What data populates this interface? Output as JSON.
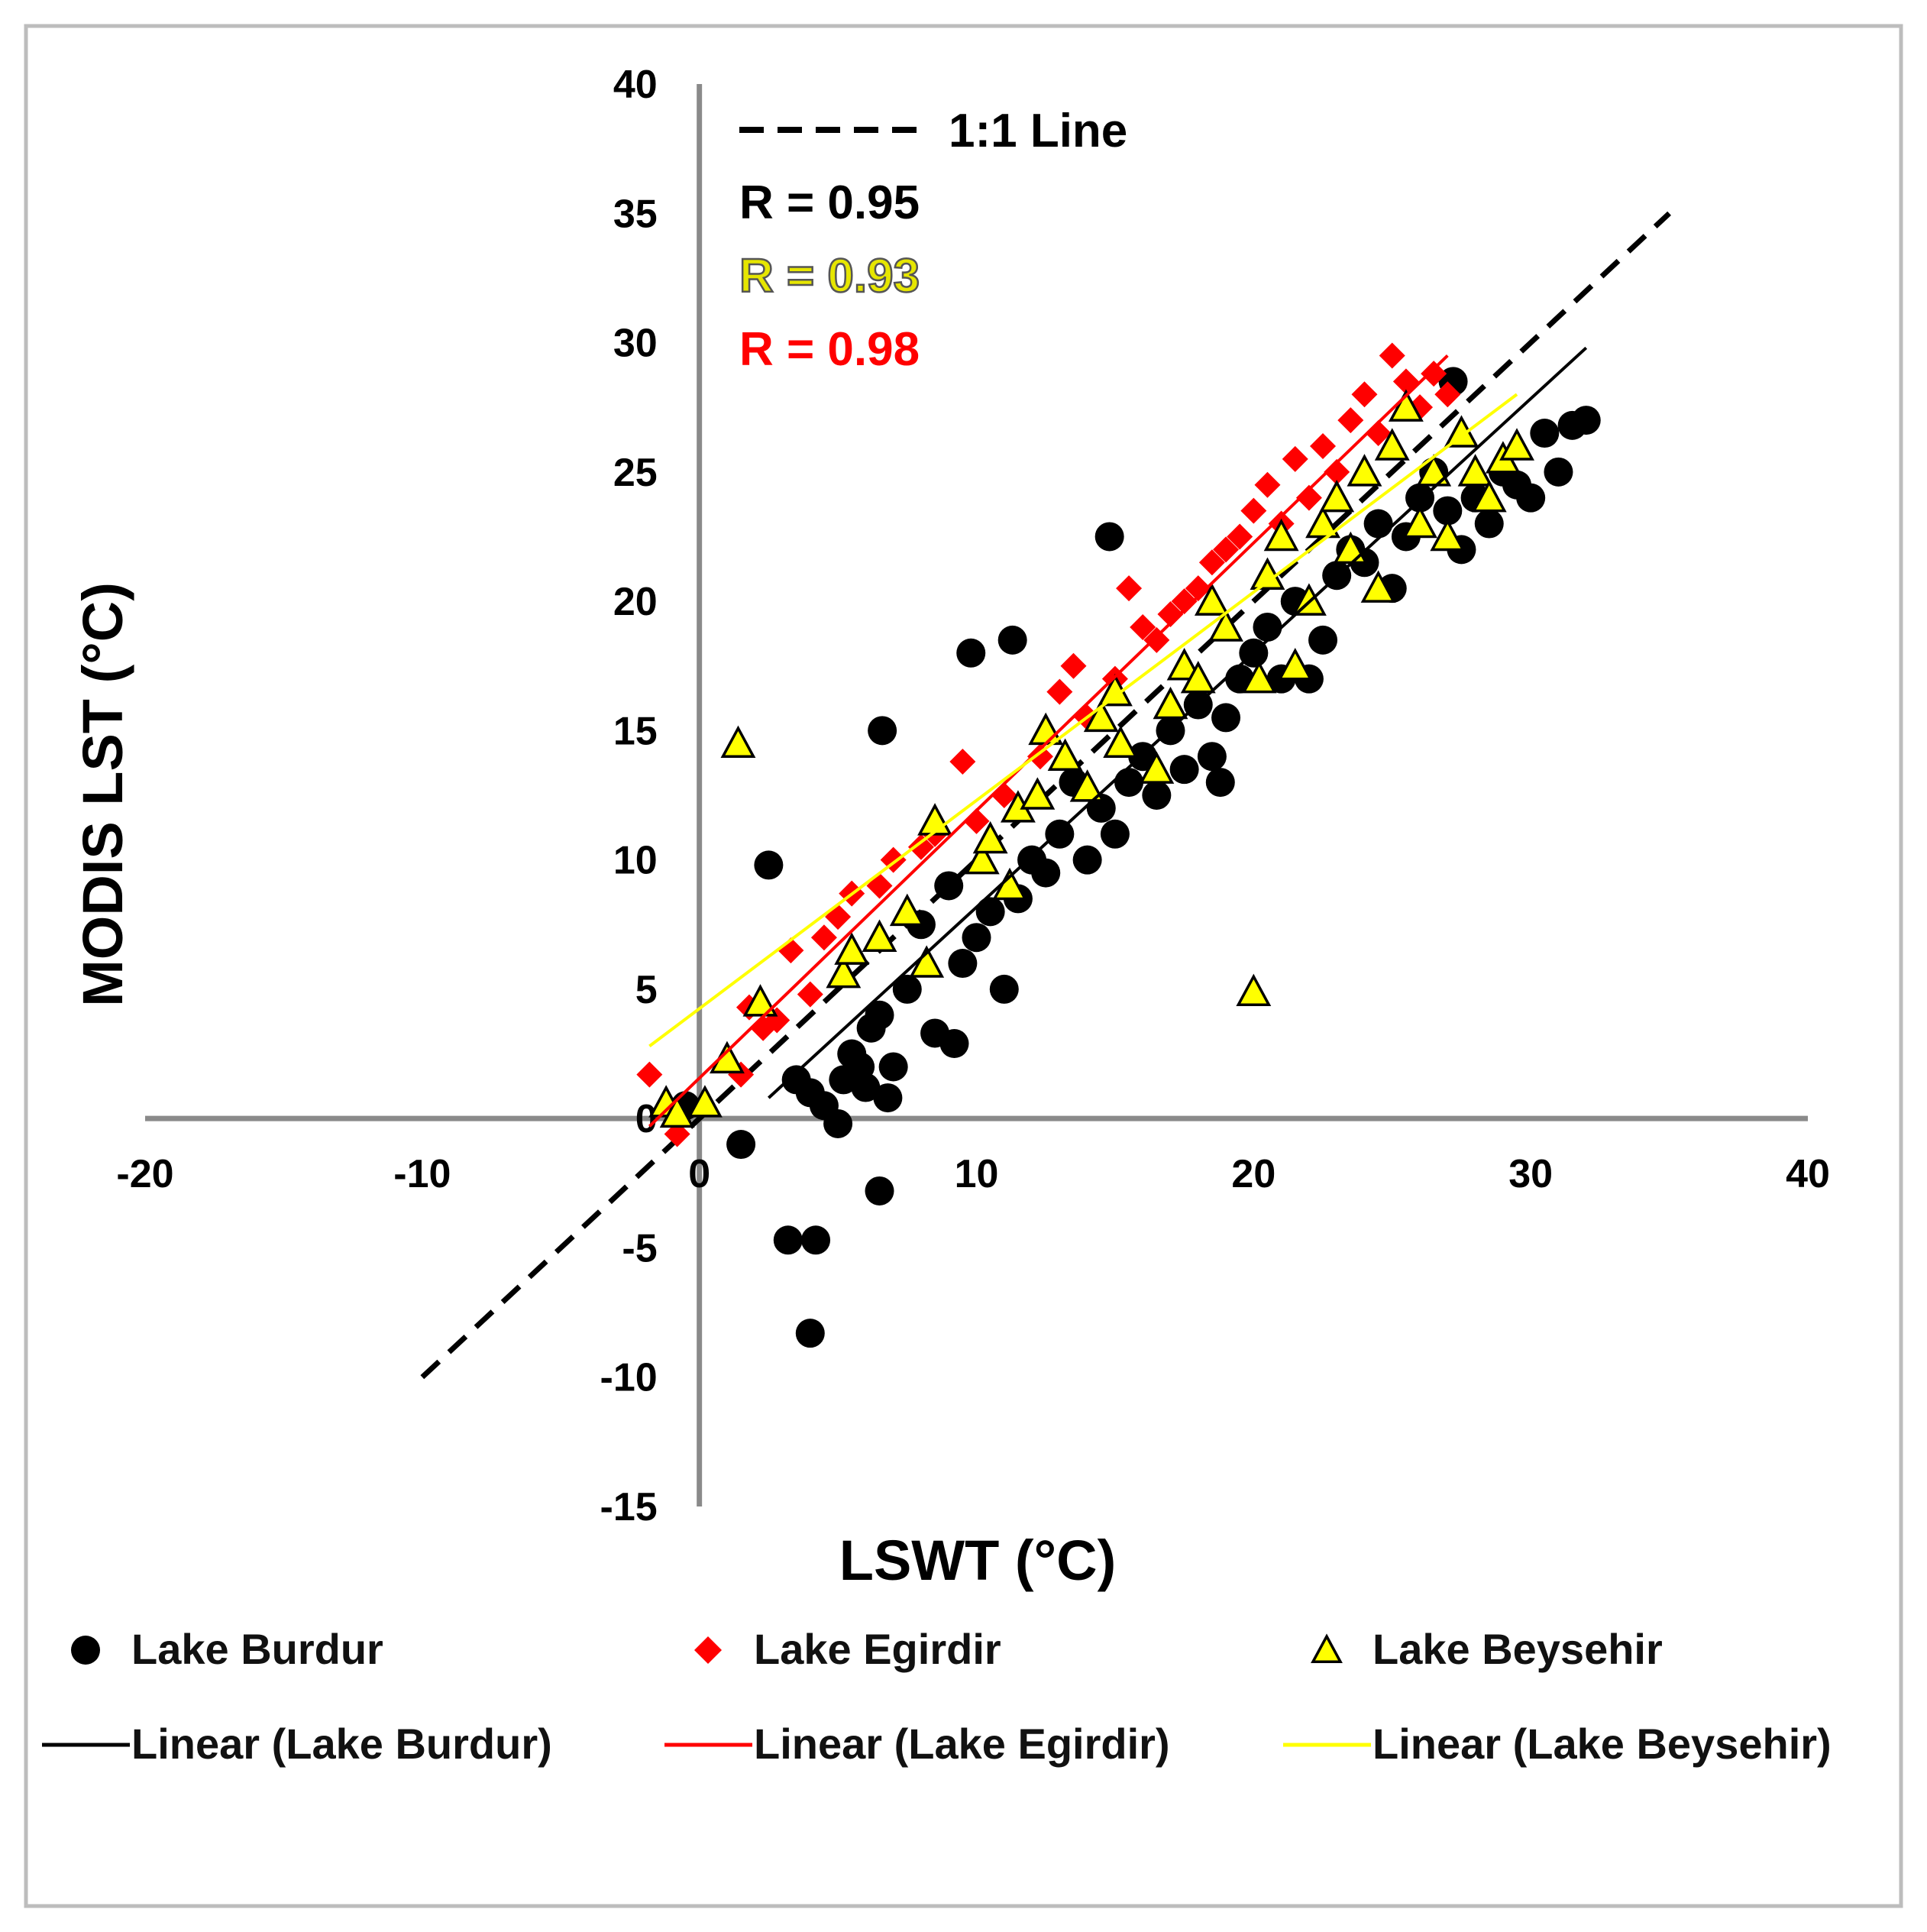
{
  "chart_data": {
    "type": "scatter",
    "xlabel": "LSWT (°C)",
    "ylabel": "MODIS LST (°C)",
    "xlim": [
      -20,
      40
    ],
    "ylim": [
      -15,
      40
    ],
    "x_ticks": [
      -20,
      -10,
      0,
      10,
      20,
      30,
      40
    ],
    "y_ticks": [
      40,
      35,
      30,
      25,
      20,
      15,
      10,
      5,
      0,
      -5,
      -10,
      -15
    ],
    "annotations": [
      {
        "text": "1:1 Line",
        "color": "#000000"
      },
      {
        "text": "R = 0.95",
        "color": "#000000"
      },
      {
        "text": "R = 0.93",
        "color": "#e6e600"
      },
      {
        "text": "R = 0.98",
        "color": "#ff0000"
      }
    ],
    "reference_line": {
      "name": "1:1 Line",
      "x": [
        -10,
        35
      ],
      "y": [
        -10,
        35
      ],
      "color": "#000000",
      "style": "dashed"
    },
    "series": [
      {
        "name": "Lake Burdur",
        "marker": "circle",
        "color": "#000000",
        "points": [
          [
            -0.5,
            0.5
          ],
          [
            1.5,
            -1
          ],
          [
            2.5,
            9.8
          ],
          [
            3.2,
            -4.7
          ],
          [
            4.2,
            -4.7
          ],
          [
            4,
            -8.3
          ],
          [
            3.5,
            1.5
          ],
          [
            4,
            1
          ],
          [
            4.5,
            0.5
          ],
          [
            5,
            -0.2
          ],
          [
            5.2,
            1.5
          ],
          [
            5.5,
            2.5
          ],
          [
            5.8,
            2
          ],
          [
            6,
            1.2
          ],
          [
            6.2,
            3.5
          ],
          [
            6.5,
            4
          ],
          [
            6.8,
            0.8
          ],
          [
            6.5,
            -2.8
          ],
          [
            7,
            2
          ],
          [
            6.6,
            15
          ],
          [
            7.5,
            5
          ],
          [
            8,
            7.5
          ],
          [
            8.5,
            3.3
          ],
          [
            9,
            9
          ],
          [
            9.2,
            2.9
          ],
          [
            9.5,
            6
          ],
          [
            10,
            7
          ],
          [
            10.5,
            8
          ],
          [
            9.8,
            18
          ],
          [
            11.3,
            18.5
          ],
          [
            11,
            5
          ],
          [
            11.5,
            8.5
          ],
          [
            12,
            10
          ],
          [
            12.5,
            9.5
          ],
          [
            13,
            11
          ],
          [
            13.5,
            13
          ],
          [
            14,
            10
          ],
          [
            14.5,
            12
          ],
          [
            14.8,
            22.5
          ],
          [
            15,
            11
          ],
          [
            15.5,
            13
          ],
          [
            16,
            14
          ],
          [
            16.5,
            12.5
          ],
          [
            17,
            15
          ],
          [
            17.5,
            13.5
          ],
          [
            18,
            16
          ],
          [
            18.5,
            14
          ],
          [
            18.8,
            13
          ],
          [
            19,
            15.5
          ],
          [
            19.5,
            17
          ],
          [
            20,
            18
          ],
          [
            20.5,
            19
          ],
          [
            21,
            17
          ],
          [
            21.5,
            20
          ],
          [
            22,
            17
          ],
          [
            22.5,
            18.5
          ],
          [
            23,
            21
          ],
          [
            23.5,
            22
          ],
          [
            24,
            21.5
          ],
          [
            24.5,
            23
          ],
          [
            25,
            20.5
          ],
          [
            25.5,
            22.5
          ],
          [
            26,
            24
          ],
          [
            26.5,
            25
          ],
          [
            27,
            23.5
          ],
          [
            27.2,
            28.5
          ],
          [
            27.5,
            22
          ],
          [
            28,
            24
          ],
          [
            28.5,
            23
          ],
          [
            29,
            25
          ],
          [
            29.5,
            24.5
          ],
          [
            30,
            24
          ],
          [
            30.5,
            26.5
          ],
          [
            31,
            25
          ],
          [
            31.5,
            26.8
          ],
          [
            32,
            27
          ]
        ]
      },
      {
        "name": "Lake Egirdir",
        "marker": "diamond",
        "color": "#ff0000",
        "points": [
          [
            -1.8,
            1.7
          ],
          [
            -0.8,
            -0.6
          ],
          [
            1.5,
            1.7
          ],
          [
            1.8,
            4.3
          ],
          [
            2.3,
            3.5
          ],
          [
            2.8,
            3.8
          ],
          [
            3.3,
            6.5
          ],
          [
            4,
            4.8
          ],
          [
            4.5,
            7
          ],
          [
            5,
            7.8
          ],
          [
            5.5,
            8.7
          ],
          [
            6.5,
            9
          ],
          [
            7,
            10
          ],
          [
            8,
            10.5
          ],
          [
            8.5,
            11
          ],
          [
            9.5,
            13.8
          ],
          [
            10,
            11.5
          ],
          [
            11,
            12.5
          ],
          [
            12.3,
            14
          ],
          [
            13,
            16.5
          ],
          [
            13.5,
            17.5
          ],
          [
            14,
            15.5
          ],
          [
            15,
            17
          ],
          [
            15.5,
            20.5
          ],
          [
            16,
            19
          ],
          [
            16.5,
            18.5
          ],
          [
            17,
            19.5
          ],
          [
            17.5,
            20
          ],
          [
            18,
            20.5
          ],
          [
            18.5,
            21.5
          ],
          [
            19,
            22
          ],
          [
            19.5,
            22.5
          ],
          [
            20,
            23.5
          ],
          [
            20.5,
            24.5
          ],
          [
            21,
            23
          ],
          [
            21.5,
            25.5
          ],
          [
            22,
            24
          ],
          [
            22.5,
            26
          ],
          [
            23,
            25
          ],
          [
            23.5,
            27
          ],
          [
            24,
            28
          ],
          [
            24.5,
            26.5
          ],
          [
            25,
            29.5
          ],
          [
            25.5,
            28.5
          ],
          [
            26,
            27.5
          ],
          [
            26.5,
            28.8
          ],
          [
            27,
            28
          ]
        ]
      },
      {
        "name": "Lake Beysehir",
        "marker": "triangle",
        "color": "#ffff00",
        "points": [
          [
            -1.2,
            0.6
          ],
          [
            -0.8,
            0.2
          ],
          [
            0.2,
            0.6
          ],
          [
            1,
            2.3
          ],
          [
            1.4,
            14.5
          ],
          [
            2.2,
            4.5
          ],
          [
            5.2,
            5.6
          ],
          [
            5.5,
            6.5
          ],
          [
            6.5,
            7
          ],
          [
            7.5,
            8
          ],
          [
            8.2,
            6
          ],
          [
            8.5,
            11.5
          ],
          [
            10.2,
            10
          ],
          [
            10.5,
            10.8
          ],
          [
            11.2,
            9
          ],
          [
            11.5,
            12
          ],
          [
            12.2,
            12.5
          ],
          [
            12.5,
            15
          ],
          [
            13.2,
            14
          ],
          [
            14,
            12.8
          ],
          [
            14.5,
            15.5
          ],
          [
            15,
            16.5
          ],
          [
            15.2,
            14.5
          ],
          [
            16.5,
            13.5
          ],
          [
            17,
            16
          ],
          [
            17.5,
            17.5
          ],
          [
            18,
            17
          ],
          [
            18.5,
            20
          ],
          [
            19,
            19
          ],
          [
            20,
            4.9
          ],
          [
            20.2,
            17
          ],
          [
            20.5,
            21
          ],
          [
            21,
            22.5
          ],
          [
            21.5,
            17.5
          ],
          [
            22,
            20
          ],
          [
            22.5,
            23
          ],
          [
            23,
            24
          ],
          [
            23.5,
            22
          ],
          [
            24,
            25
          ],
          [
            24.5,
            20.5
          ],
          [
            25,
            26
          ],
          [
            25.5,
            27.5
          ],
          [
            26,
            23
          ],
          [
            26.5,
            25
          ],
          [
            27,
            22.5
          ],
          [
            27.5,
            26.5
          ],
          [
            28,
            25
          ],
          [
            28.5,
            24
          ],
          [
            29,
            25.5
          ],
          [
            29.5,
            26
          ]
        ]
      }
    ],
    "trendlines": [
      {
        "name": "Linear (Lake Burdur)",
        "color": "#000000",
        "x": [
          2.5,
          32
        ],
        "y": [
          0.8,
          29.8
        ]
      },
      {
        "name": "Linear (Lake Egirdir)",
        "color": "#ff0000",
        "x": [
          -1.8,
          27
        ],
        "y": [
          -0.3,
          29.5
        ]
      },
      {
        "name": "Linear (Lake Beysehir)",
        "color": "#ffff00",
        "x": [
          -1.8,
          29.5
        ],
        "y": [
          2.8,
          28
        ]
      }
    ],
    "legend": {
      "placement": "bottom",
      "entries": [
        {
          "label": "Lake Burdur",
          "kind": "circle",
          "color": "#000000"
        },
        {
          "label": "Lake Egirdir",
          "kind": "diamond",
          "color": "#ff0000"
        },
        {
          "label": "Lake Beysehir",
          "kind": "triangle",
          "color": "#ffff00"
        },
        {
          "label": "Linear (Lake Burdur)",
          "kind": "line",
          "color": "#000000"
        },
        {
          "label": "Linear (Lake Egirdir)",
          "kind": "line",
          "color": "#ff0000"
        },
        {
          "label": "Linear (Lake Beysehir)",
          "kind": "line",
          "color": "#ffff00"
        }
      ]
    }
  }
}
